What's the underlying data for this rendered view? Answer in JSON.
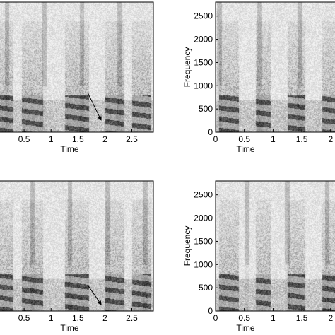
{
  "figure": {
    "panels": [
      {
        "id": "top-left",
        "xlabel": "Time",
        "ylabel": "",
        "x_ticks": [
          "0.5",
          "1",
          "1.5",
          "2",
          "2.5"
        ],
        "x_tick_values": [
          0.5,
          1,
          1.5,
          2,
          2.5
        ],
        "xlim": [
          0,
          2.9
        ],
        "y_ticks": [],
        "y_tick_values": [],
        "ylim": [
          0,
          2800
        ],
        "arrow": true,
        "seed": 11
      },
      {
        "id": "top-right",
        "xlabel": "Time",
        "ylabel": "Frequency",
        "x_ticks": [
          "0",
          "0.5",
          "1",
          "1.5",
          "2"
        ],
        "x_tick_values": [
          0,
          0.5,
          1,
          1.5,
          2
        ],
        "xlim": [
          0,
          2.15
        ],
        "y_ticks": [
          "0",
          "500",
          "1000",
          "1500",
          "2000",
          "2500"
        ],
        "y_tick_values": [
          0,
          500,
          1000,
          1500,
          2000,
          2500
        ],
        "ylim": [
          0,
          2800
        ],
        "arrow": false,
        "seed": 23
      },
      {
        "id": "bottom-left",
        "xlabel": "Time",
        "ylabel": "",
        "x_ticks": [
          "0.5",
          "1",
          "1.5",
          "2",
          "2.5"
        ],
        "x_tick_values": [
          0.5,
          1,
          1.5,
          2,
          2.5
        ],
        "xlim": [
          0,
          2.9
        ],
        "y_ticks": [],
        "y_tick_values": [],
        "ylim": [
          0,
          2800
        ],
        "arrow": true,
        "seed": 37
      },
      {
        "id": "bottom-right",
        "xlabel": "Time",
        "ylabel": "Frequency",
        "x_ticks": [
          "0",
          "0.5",
          "1",
          "1.5",
          "2"
        ],
        "x_tick_values": [
          0,
          0.5,
          1,
          1.5,
          2
        ],
        "xlim": [
          0,
          2.15
        ],
        "y_ticks": [
          "0",
          "500",
          "1000",
          "1500",
          "2000",
          "2500"
        ],
        "y_tick_values": [
          0,
          500,
          1000,
          1500,
          2000,
          2500
        ],
        "ylim": [
          0,
          2800
        ],
        "arrow": false,
        "seed": 53
      }
    ]
  }
}
